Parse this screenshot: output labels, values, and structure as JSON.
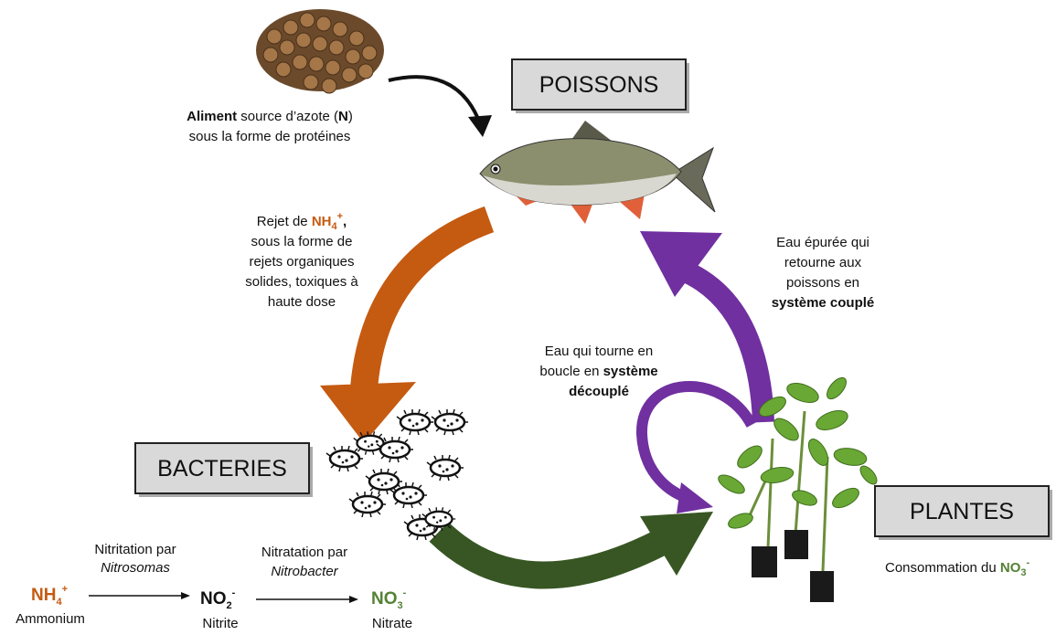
{
  "labels": {
    "poissons": "POISSONS",
    "bacteries": "BACTERIES",
    "plantes": "PLANTES"
  },
  "feed": {
    "line1": [
      "Aliment",
      " source d’azote (",
      "N",
      ")"
    ],
    "line2": "sous la forme de protéines"
  },
  "release": {
    "line1": [
      "Rejet de ",
      "NH",
      "4",
      "+",
      ","
    ],
    "lines": [
      "sous la forme de",
      "rejets organiques",
      "solides, toxiques à",
      "haute dose"
    ]
  },
  "return": {
    "lines": [
      "Eau épurée qui",
      "retourne aux",
      "poissons en"
    ],
    "bold": "système couplé"
  },
  "loop": {
    "line1": "Eau qui tourne en",
    "line2": [
      "boucle en ",
      "système"
    ],
    "line3": "découplé"
  },
  "steps": [
    {
      "label": "Nitritation par",
      "agent": "Nitrosomas"
    },
    {
      "label": "Nitratation par",
      "agent": "Nitrobacter"
    }
  ],
  "species": [
    {
      "formula": [
        "NH",
        "4",
        "+"
      ],
      "name": "Ammonium"
    },
    {
      "formula": [
        "NO",
        "2",
        "-"
      ],
      "name": "Nitrite"
    },
    {
      "formula": [
        "NO",
        "3",
        "-"
      ],
      "name": "Nitrate"
    }
  ],
  "consumption": [
    "Consommation du ",
    "NO",
    "3",
    "-"
  ]
}
